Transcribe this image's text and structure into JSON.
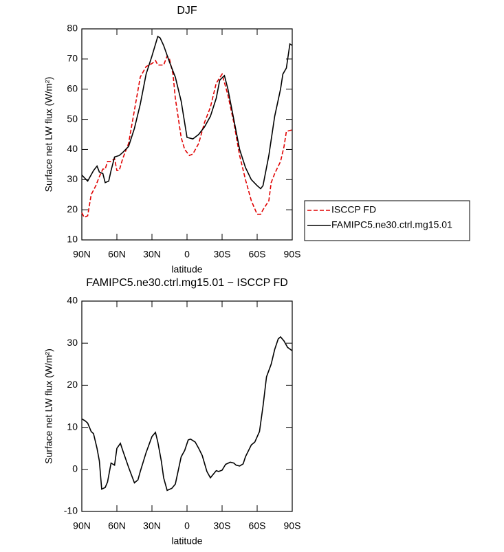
{
  "chart_data": [
    {
      "type": "line",
      "title": "DJF",
      "xlabel": "latitude",
      "ylabel": "Surface net LW flux (W/m²)",
      "xlim": [
        90,
        -90
      ],
      "ylim": [
        10,
        80
      ],
      "xticks": [
        {
          "value": 90,
          "label": "90N"
        },
        {
          "value": 60,
          "label": "60N"
        },
        {
          "value": 30,
          "label": "30N"
        },
        0,
        {
          "value": -30,
          "label": "30S"
        },
        {
          "value": -60,
          "label": "60S"
        },
        {
          "value": -90,
          "label": "90S"
        }
      ],
      "yticks": [
        10,
        20,
        30,
        40,
        50,
        60,
        70,
        80
      ],
      "legend": "outside-right",
      "series": [
        {
          "name": "ISCCP FD",
          "color": "#e00000",
          "dashed": true,
          "x": [
            90,
            88,
            85,
            82,
            78,
            75,
            72,
            70,
            68,
            65,
            62,
            60,
            58,
            55,
            50,
            45,
            40,
            35,
            30,
            27,
            25,
            20,
            17,
            15,
            12,
            10,
            5,
            2,
            -2,
            -5,
            -10,
            -15,
            -20,
            -25,
            -30,
            -35,
            -40,
            -45,
            -50,
            -55,
            -60,
            -63,
            -65,
            -70,
            -72,
            -75,
            -80,
            -83,
            -85,
            -90
          ],
          "values": [
            19,
            17.5,
            18,
            25,
            28,
            31,
            33.5,
            33.5,
            36,
            36,
            37,
            33,
            33,
            37,
            42,
            53,
            64,
            67.5,
            68.5,
            69.5,
            68,
            68,
            71,
            70,
            65,
            57,
            44,
            40,
            38,
            38.5,
            42,
            49,
            54,
            62,
            65,
            58,
            49,
            38,
            30,
            23,
            18.5,
            18.5,
            20,
            23,
            29,
            32,
            36,
            41,
            46,
            46.5
          ]
        },
        {
          "name": "FAMIPC5.ne30.ctrl.mg15.01",
          "color": "#000000",
          "dashed": false,
          "x": [
            90,
            85,
            80,
            77,
            75,
            72,
            70,
            67,
            65,
            62,
            58,
            55,
            50,
            45,
            40,
            35,
            30,
            25,
            23,
            20,
            15,
            10,
            5,
            0,
            -5,
            -10,
            -15,
            -20,
            -25,
            -28,
            -32,
            -35,
            -40,
            -45,
            -50,
            -55,
            -60,
            -63,
            -65,
            -70,
            -75,
            -80,
            -82,
            -85,
            -88,
            -90
          ],
          "values": [
            31.5,
            29.5,
            33,
            34.5,
            32.5,
            32,
            29,
            29.5,
            33,
            37.5,
            38,
            39,
            41,
            47,
            55,
            65,
            71,
            77.5,
            77,
            74.5,
            69,
            64,
            56,
            44,
            43.5,
            45,
            47.5,
            51,
            57,
            63,
            64.5,
            60,
            50,
            40,
            34,
            30,
            28,
            27,
            28,
            38,
            51,
            60,
            65,
            67,
            75,
            74.5
          ]
        }
      ]
    },
    {
      "type": "line",
      "title": "FAMIPC5.ne30.ctrl.mg15.01 − ISCCP FD",
      "xlabel": "latitude",
      "ylabel": "Surface net LW flux (W/m²)",
      "xlim": [
        90,
        -90
      ],
      "ylim": [
        -10,
        40
      ],
      "xticks": [
        {
          "value": 90,
          "label": "90N"
        },
        {
          "value": 60,
          "label": "60N"
        },
        {
          "value": 30,
          "label": "30N"
        },
        0,
        {
          "value": -30,
          "label": "30S"
        },
        {
          "value": -60,
          "label": "60S"
        },
        {
          "value": -90,
          "label": "90S"
        }
      ],
      "yticks": [
        -10,
        0,
        10,
        20,
        30,
        40
      ],
      "series": [
        {
          "color": "#000000",
          "dashed": false,
          "x": [
            90,
            87,
            85,
            82,
            80,
            77,
            75,
            73,
            70,
            68,
            65,
            62,
            60,
            57,
            55,
            50,
            45,
            42,
            40,
            35,
            30,
            27,
            25,
            22,
            20,
            17,
            13,
            10,
            5,
            2,
            -1,
            -3,
            -7,
            -10,
            -13,
            -17,
            -20,
            -25,
            -27,
            -30,
            -33,
            -37,
            -40,
            -42,
            -45,
            -48,
            -50,
            -55,
            -58,
            -62,
            -65,
            -68,
            -72,
            -75,
            -78,
            -80,
            -83,
            -86,
            -90
          ],
          "values": [
            12,
            11.5,
            11,
            9,
            8.5,
            5,
            2,
            -4.7,
            -4.3,
            -3,
            1.5,
            1,
            5,
            6.2,
            4.5,
            0.5,
            -3.2,
            -2.5,
            -0.5,
            4,
            7.8,
            8.8,
            6.5,
            2,
            -2,
            -5,
            -4.5,
            -3.5,
            3,
            4.5,
            7,
            7.2,
            6.5,
            5,
            3.3,
            -0.5,
            -2,
            -0.3,
            -0.5,
            -0.2,
            1.2,
            1.7,
            1.5,
            1,
            0.8,
            1.3,
            3,
            5.8,
            6.5,
            9,
            15,
            22,
            25,
            28.5,
            31,
            31.5,
            30.5,
            29,
            28.2
          ]
        }
      ]
    }
  ]
}
